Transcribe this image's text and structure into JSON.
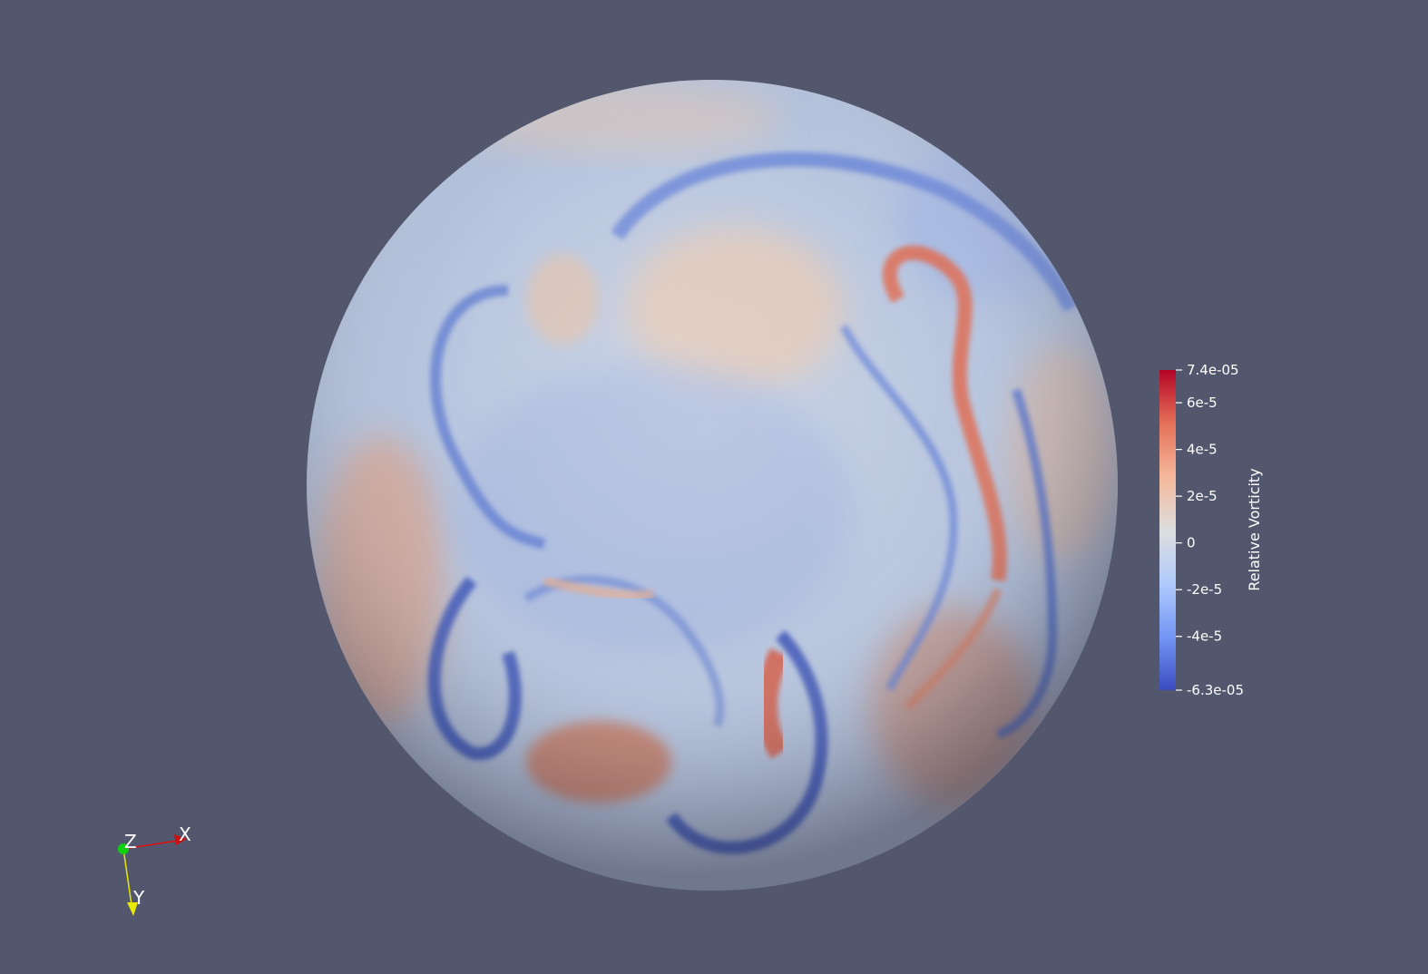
{
  "scene": {
    "background": "#52576e",
    "sphere": {
      "surface": "vorticity-field"
    }
  },
  "colorbar": {
    "title": "Relative Vorticity",
    "range": [
      -6.3e-05,
      7.4e-05
    ],
    "colormap": [
      "#3b4cc0",
      "#7396f5",
      "#b0cbfc",
      "#dddddd",
      "#f5b89b",
      "#e57058",
      "#b40426"
    ],
    "ticks": [
      {
        "value": 7.4e-05,
        "label": "7.4e-05"
      },
      {
        "value": 6e-05,
        "label": "6e-5"
      },
      {
        "value": 4e-05,
        "label": "4e-5"
      },
      {
        "value": 2e-05,
        "label": "2e-5"
      },
      {
        "value": 0,
        "label": "0"
      },
      {
        "value": -2e-05,
        "label": "-2e-5"
      },
      {
        "value": -4e-05,
        "label": "-4e-5"
      },
      {
        "value": -6.3e-05,
        "label": "-6.3e-05"
      }
    ]
  },
  "orientation_axes": {
    "x": {
      "label": "X",
      "color": "#e01010"
    },
    "y": {
      "label": "Y",
      "color": "#e8e800"
    },
    "z": {
      "label": "Z",
      "color": "#10d010"
    }
  }
}
